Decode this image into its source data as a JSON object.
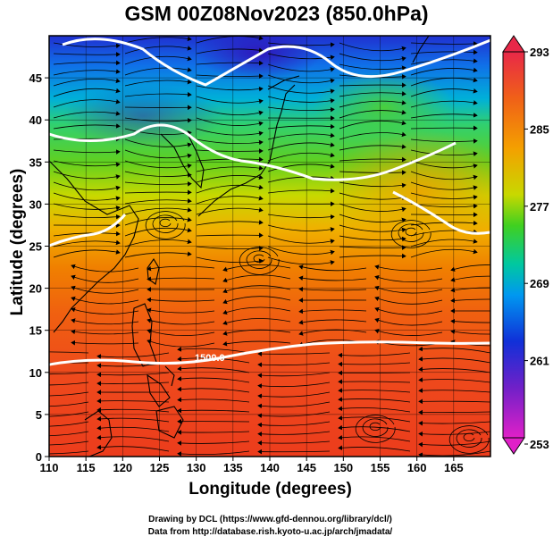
{
  "title": "GSM 00Z08Nov2023 (850.0hPa)",
  "axes": {
    "xlabel": "Longitude (degrees)",
    "ylabel": "Latitude  (degrees)",
    "x_ticks": [
      "110",
      "115",
      "120",
      "125",
      "130",
      "135",
      "140",
      "145",
      "150",
      "155",
      "160",
      "165"
    ],
    "y_ticks": [
      "0",
      "5",
      "10",
      "15",
      "20",
      "25",
      "30",
      "35",
      "40",
      "45"
    ]
  },
  "colorbar": {
    "labels": [
      "293",
      "285",
      "277",
      "269",
      "261",
      "253"
    ],
    "colors": [
      "#e8285a",
      "#f06a14",
      "#f4a800",
      "#c8d800",
      "#40d020",
      "#00c8b0",
      "#0096f0",
      "#1030d8",
      "#7020c8",
      "#d020d0"
    ]
  },
  "contour_label": "1500.0",
  "credits": {
    "line1": "Drawing by DCL (https://www.gfd-dennou.org/library/dcl/)",
    "line2": "Data from http://database.rish.kyoto-u.ac.jp/arch/jmadata/"
  },
  "chart_data": {
    "type": "heatmap",
    "title": "GSM 00Z08Nov2023 (850.0hPa)",
    "xlabel": "Longitude (degrees)",
    "ylabel": "Latitude  (degrees)",
    "xlim": [
      110,
      170
    ],
    "ylim": [
      0,
      50
    ],
    "x_ticks": [
      110,
      115,
      120,
      125,
      130,
      135,
      140,
      145,
      150,
      155,
      160,
      165
    ],
    "y_ticks": [
      0,
      5,
      10,
      15,
      20,
      25,
      30,
      35,
      40,
      45
    ],
    "colorbar_range": [
      253,
      293
    ],
    "colorbar_ticks": [
      253,
      261,
      269,
      277,
      285,
      293
    ],
    "fields": [
      "temperature (shaded)",
      "wind (streamlines)",
      "geopotential height (white contours)"
    ],
    "temperature_by_latitude": [
      {
        "lat": 0,
        "value": 291
      },
      {
        "lat": 10,
        "value": 291
      },
      {
        "lat": 20,
        "value": 290
      },
      {
        "lat": 25,
        "value": 288
      },
      {
        "lat": 30,
        "value": 285
      },
      {
        "lat": 35,
        "value": 281
      },
      {
        "lat": 40,
        "value": 277
      },
      {
        "lat": 45,
        "value": 271
      },
      {
        "lat": 50,
        "value": 265
      }
    ],
    "contour_labels": [
      {
        "value": "1500.0",
        "lon": 135,
        "lat": 14
      }
    ],
    "grid": true
  }
}
